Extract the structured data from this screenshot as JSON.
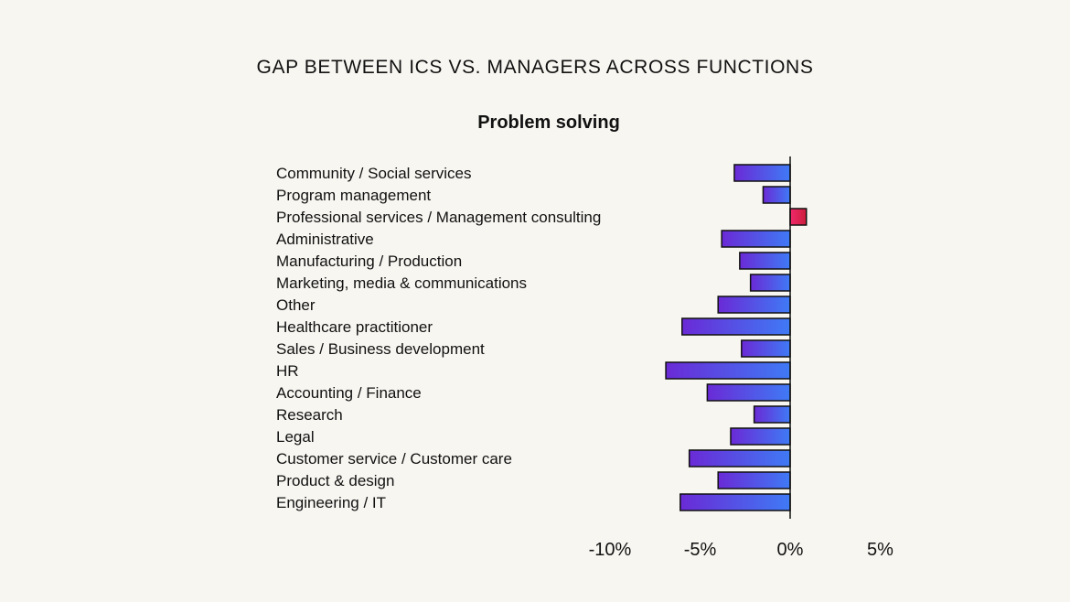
{
  "chart_data": {
    "type": "bar",
    "orientation": "horizontal",
    "title": "GAP BETWEEN ICS VS. MANAGERS ACROSS FUNCTIONS",
    "subtitle": "Problem solving",
    "xlabel": "",
    "ylabel": "",
    "xlim": [
      -10,
      5
    ],
    "x_ticks": [
      -10,
      -5,
      0,
      5
    ],
    "x_tick_labels": [
      "-10%",
      "-5%",
      "0%",
      "5%"
    ],
    "grid": false,
    "categories": [
      "Community / Social services",
      "Program management",
      "Professional services / Management consulting",
      "Administrative",
      "Manufacturing / Production",
      "Marketing, media & communications",
      "Other",
      "Healthcare practitioner",
      "Sales / Business development",
      "HR",
      "Accounting / Finance",
      "Research",
      "Legal",
      "Customer service / Customer care",
      "Product & design",
      "Engineering / IT"
    ],
    "values": [
      -3.1,
      -1.5,
      0.9,
      -3.8,
      -2.8,
      -2.2,
      -4.0,
      -6.0,
      -2.7,
      -6.9,
      -4.6,
      -2.0,
      -3.3,
      -5.6,
      -4.0,
      -6.1
    ],
    "colors": {
      "negative_start": "#6a2ad6",
      "negative_end": "#3f7af5",
      "positive_start": "#f0286a",
      "positive_end": "#cc1f3c",
      "bar_stroke": "#111111",
      "axis": "#111111"
    }
  }
}
